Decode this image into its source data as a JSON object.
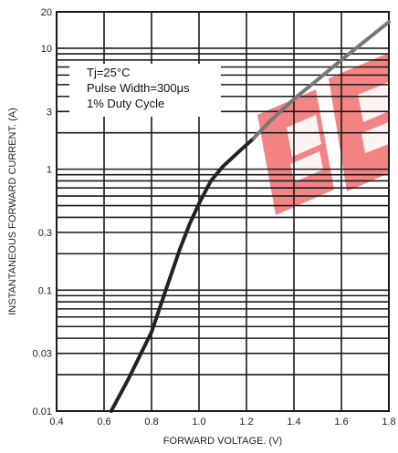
{
  "chart_data": {
    "type": "line",
    "title": "",
    "xlabel": "FORWARD VOLTAGE. (V)",
    "ylabel": "INSTANTANEOUS FORWARD CURRENT. (A)",
    "x_scale": "linear",
    "y_scale": "log",
    "xlim": [
      0.4,
      1.8
    ],
    "ylim": [
      0.01,
      20
    ],
    "x_ticks": [
      {
        "value": 0.4,
        "label": "0.4"
      },
      {
        "value": 0.6,
        "label": "0.6"
      },
      {
        "value": 0.8,
        "label": "0.8"
      },
      {
        "value": 1.0,
        "label": "1.0"
      },
      {
        "value": 1.2,
        "label": "1.2"
      },
      {
        "value": 1.4,
        "label": "1.4"
      },
      {
        "value": 1.6,
        "label": "1.6"
      },
      {
        "value": 1.8,
        "label": "1.8"
      }
    ],
    "y_ticks": [
      {
        "value": 0.01,
        "label": "0.01"
      },
      {
        "value": 0.03,
        "label": "0.03"
      },
      {
        "value": 0.1,
        "label": "0.1"
      },
      {
        "value": 0.3,
        "label": "0.3"
      },
      {
        "value": 1,
        "label": "1"
      },
      {
        "value": 3,
        "label": "3"
      },
      {
        "value": 10,
        "label": "10"
      },
      {
        "value": 20,
        "label": "20"
      }
    ],
    "y_gridlines": [
      0.01,
      0.02,
      0.03,
      0.04,
      0.05,
      0.06,
      0.07,
      0.08,
      0.09,
      0.1,
      0.2,
      0.3,
      0.4,
      0.5,
      0.6,
      0.7,
      0.8,
      0.9,
      1,
      2,
      3,
      4,
      5,
      6,
      7,
      8,
      9,
      10,
      20
    ],
    "x_gridlines": [
      0.4,
      0.6,
      0.8,
      1.0,
      1.2,
      1.4,
      1.6,
      1.8
    ],
    "grid": true,
    "annotations": [
      "Tj=25°C",
      "Pulse Width=300μs",
      "1% Duty Cycle"
    ],
    "series": [
      {
        "x": [
          0.63,
          0.7,
          0.8,
          0.86,
          0.92,
          0.96,
          1.0,
          1.05,
          1.1,
          1.16,
          1.23,
          1.3,
          1.4,
          1.5,
          1.6,
          1.7,
          1.8
        ],
        "y": [
          0.01,
          0.018,
          0.045,
          0.1,
          0.22,
          0.35,
          0.52,
          0.8,
          1.05,
          1.35,
          1.8,
          2.5,
          3.8,
          5.5,
          8.0,
          11.5,
          16.5
        ],
        "color": "#222222"
      }
    ],
    "colors": {
      "curve": "#222222",
      "curve_faded": "#777777",
      "watermark": "#f05a5a",
      "grid": "#1a1a1a"
    }
  }
}
